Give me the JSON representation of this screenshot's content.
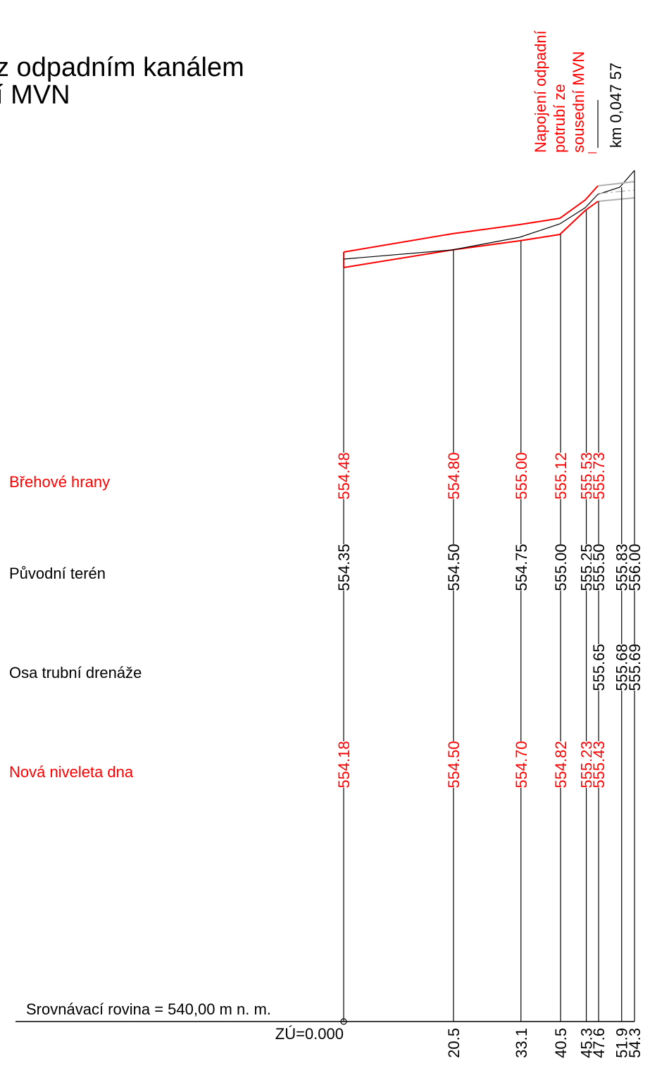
{
  "title": {
    "line1": "z odpadním kanálem",
    "line2": "í MVN"
  },
  "annotation": {
    "lines": [
      "Napojení odpadní",
      "potrubí ze",
      "sousední MVN"
    ],
    "station": "km 0,047 57"
  },
  "rows": {
    "brehove_hrany": "Břehové hrany",
    "puvodni_teren": "Původní terén",
    "osa_drenaze": "Osa trubní drenáže",
    "nova_niveleta": "Nová niveleta dna"
  },
  "datum_label": "Srovnávací rovina = 540,00 m n. m.",
  "zu_label": "ZÚ=0.000",
  "colors": {
    "design": "#ff0000",
    "terrain": "#000000",
    "pipe": "#b0b0b0"
  },
  "chart_data": {
    "type": "line",
    "title": "",
    "xlabel": "",
    "ylabel": "",
    "stations": [
      {
        "station": "ZÚ=0.000",
        "x": 0.0,
        "brehove_hrany": "554.48",
        "puvodni_teren": "554.35",
        "osa_drenaze": "",
        "nova_niveleta": "554.18"
      },
      {
        "station": "20.5",
        "x": 20.5,
        "brehove_hrany": "554.80",
        "puvodni_teren": "554.50",
        "osa_drenaze": "",
        "nova_niveleta": "554.50"
      },
      {
        "station": "33.1",
        "x": 33.1,
        "brehove_hrany": "555.00",
        "puvodni_teren": "554.75",
        "osa_drenaze": "",
        "nova_niveleta": "554.70"
      },
      {
        "station": "40.5",
        "x": 40.5,
        "brehove_hrany": "555.12",
        "puvodni_teren": "555.00",
        "osa_drenaze": "",
        "nova_niveleta": "554.82"
      },
      {
        "station": "45.3",
        "x": 45.3,
        "brehove_hrany": "555.53",
        "puvodni_teren": "555.25",
        "osa_drenaze": "",
        "nova_niveleta": "555.23"
      },
      {
        "station": "47.6",
        "x": 47.6,
        "brehove_hrany": "555.73",
        "puvodni_teren": "555.50",
        "osa_drenaze": "555.65",
        "nova_niveleta": "555.43"
      },
      {
        "station": "51.9",
        "x": 51.9,
        "brehove_hrany": "",
        "puvodni_teren": "555.83",
        "osa_drenaze": "555.68",
        "nova_niveleta": ""
      },
      {
        "station": "54.3",
        "x": 54.3,
        "brehove_hrany": "",
        "puvodni_teren": "556.00",
        "osa_drenaze": "555.69",
        "nova_niveleta": ""
      }
    ]
  }
}
